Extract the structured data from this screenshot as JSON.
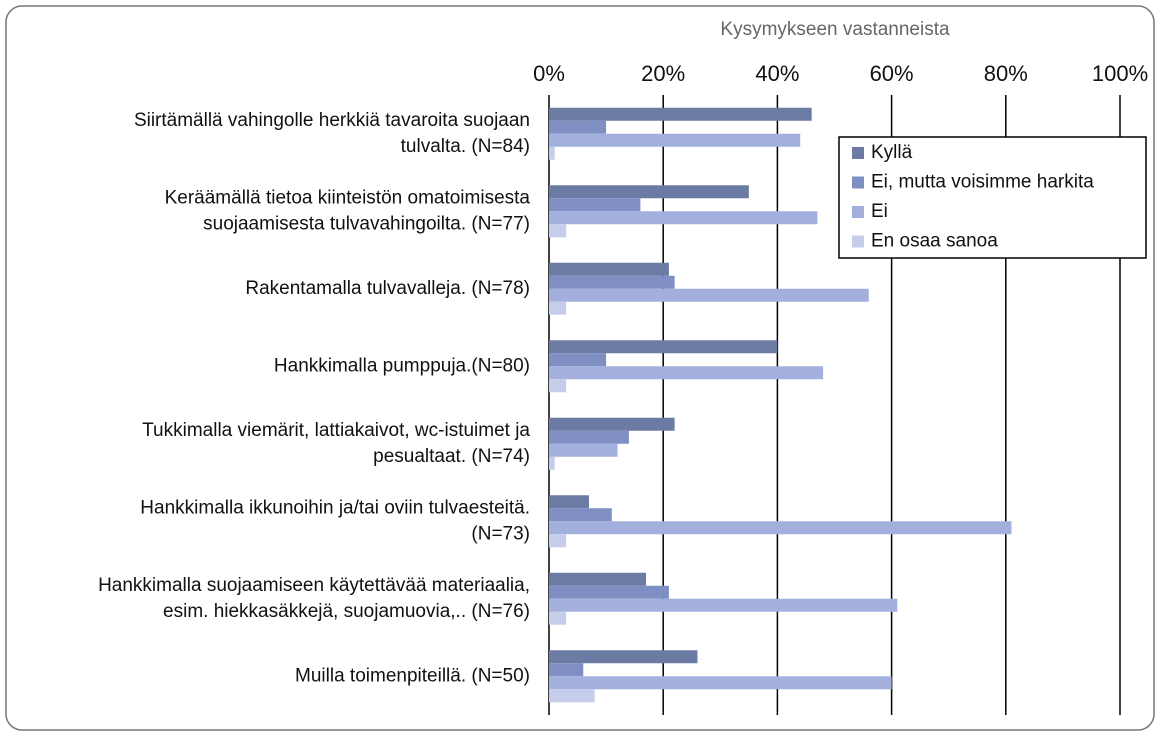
{
  "chart_data": {
    "type": "barh",
    "title": "Kysymykseen vastanneista",
    "categories": [
      "Siirtämällä vahingolle herkkiä tavaroita suojaan\ntulvalta. (N=84)",
      "Keräämällä tietoa kiinteistön omatoimisesta\nsuojaamisesta tulvavahingoilta. (N=77)",
      "Rakentamalla tulvavalleja. (N=78)",
      "Hankkimalla pumppuja.(N=80)",
      "Tukkimalla viemärit, lattiakaivot, wc-istuimet ja\npesualtaat. (N=74)",
      "Hankkimalla ikkunoihin ja/tai oviin tulvaesteitä.\n(N=73)",
      "Hankkimalla suojaamiseen käytettävää materiaalia,\nesim. hiekkasäkkejä, suojamuovia,.. (N=76)",
      "Muilla toimenpiteillä. (N=50)"
    ],
    "series": [
      {
        "name": "Kyllä",
        "color": "#6b7ba3",
        "values": [
          46,
          35,
          21,
          40,
          22,
          7,
          17,
          26
        ]
      },
      {
        "name": "Ei, mutta voisimme harkita",
        "color": "#7f8fc4",
        "values": [
          10,
          16,
          22,
          10,
          14,
          11,
          21,
          6
        ]
      },
      {
        "name": "Ei",
        "color": "#a3b0dd",
        "values": [
          44,
          47,
          56,
          48,
          12,
          81,
          61,
          60
        ]
      },
      {
        "name": "En osaa sanoa",
        "color": "#c6cdea",
        "values": [
          1,
          3,
          3,
          3,
          1,
          3,
          3,
          8
        ]
      }
    ],
    "xlim": [
      0,
      100
    ],
    "xticks": [
      {
        "value": 0,
        "label": "0%"
      },
      {
        "value": 20,
        "label": "20%"
      },
      {
        "value": 40,
        "label": "40%"
      },
      {
        "value": 60,
        "label": "60%"
      },
      {
        "value": 80,
        "label": "80%"
      },
      {
        "value": 100,
        "label": "100%"
      }
    ],
    "grid": true,
    "legend": "upper right"
  }
}
